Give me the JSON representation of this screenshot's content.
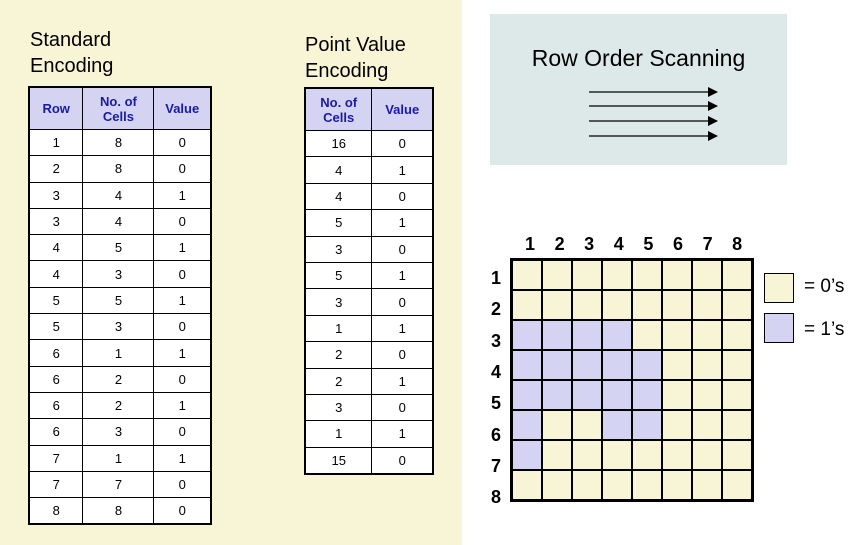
{
  "standard": {
    "title_line1": "Standard",
    "title_line2": "Encoding",
    "headers": [
      "Row",
      "No. of\nCells",
      "Value"
    ],
    "rows": [
      [
        "1",
        "8",
        "0"
      ],
      [
        "2",
        "8",
        "0"
      ],
      [
        "3",
        "4",
        "1"
      ],
      [
        "3",
        "4",
        "0"
      ],
      [
        "4",
        "5",
        "1"
      ],
      [
        "4",
        "3",
        "0"
      ],
      [
        "5",
        "5",
        "1"
      ],
      [
        "5",
        "3",
        "0"
      ],
      [
        "6",
        "1",
        "1"
      ],
      [
        "6",
        "2",
        "0"
      ],
      [
        "6",
        "2",
        "1"
      ],
      [
        "6",
        "3",
        "0"
      ],
      [
        "7",
        "1",
        "1"
      ],
      [
        "7",
        "7",
        "0"
      ],
      [
        "8",
        "8",
        "0"
      ]
    ]
  },
  "point": {
    "title_line1": "Point Value",
    "title_line2": "Encoding",
    "headers": [
      "No. of\nCells",
      "Value"
    ],
    "rows": [
      [
        "16",
        "0"
      ],
      [
        "4",
        "1"
      ],
      [
        "4",
        "0"
      ],
      [
        "5",
        "1"
      ],
      [
        "3",
        "0"
      ],
      [
        "5",
        "1"
      ],
      [
        "3",
        "0"
      ],
      [
        "1",
        "1"
      ],
      [
        "2",
        "0"
      ],
      [
        "2",
        "1"
      ],
      [
        "3",
        "0"
      ],
      [
        "1",
        "1"
      ],
      [
        "15",
        "0"
      ]
    ]
  },
  "scan": {
    "title": "Row Order Scanning"
  },
  "grid": {
    "col_labels": [
      "1",
      "2",
      "3",
      "4",
      "5",
      "6",
      "7",
      "8"
    ],
    "row_labels": [
      "1",
      "2",
      "3",
      "4",
      "5",
      "6",
      "7",
      "8"
    ],
    "cells": [
      [
        0,
        0,
        0,
        0,
        0,
        0,
        0,
        0
      ],
      [
        0,
        0,
        0,
        0,
        0,
        0,
        0,
        0
      ],
      [
        1,
        1,
        1,
        1,
        0,
        0,
        0,
        0
      ],
      [
        1,
        1,
        1,
        1,
        1,
        0,
        0,
        0
      ],
      [
        1,
        1,
        1,
        1,
        1,
        0,
        0,
        0
      ],
      [
        1,
        0,
        0,
        1,
        1,
        0,
        0,
        0
      ],
      [
        1,
        0,
        0,
        0,
        0,
        0,
        0,
        0
      ],
      [
        0,
        0,
        0,
        0,
        0,
        0,
        0,
        0
      ]
    ],
    "colors": {
      "zero": "#f8f4d6",
      "one": "#d4d4f2"
    }
  },
  "legend": {
    "zero_label": "= 0’s",
    "one_label": "= 1’s"
  }
}
